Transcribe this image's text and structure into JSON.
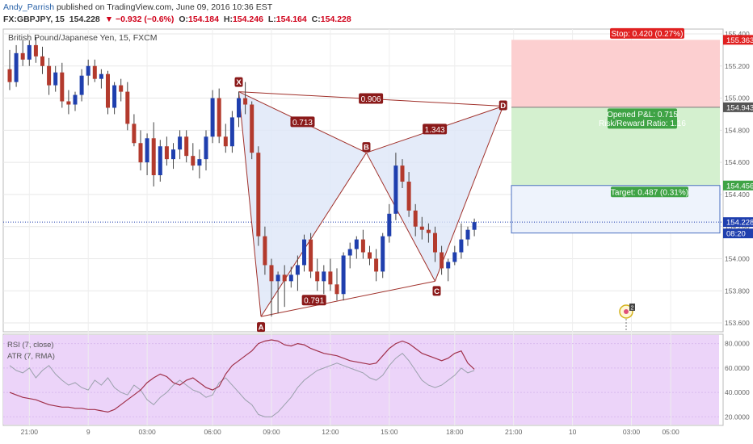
{
  "header": {
    "author": "Andy_Parrish",
    "published": "published on TradingView.com, June 09, 2016 10:36 EST",
    "symbol_line": "FX:GBPJPY, 15",
    "last_price": "154.228",
    "change": "▼ −0.932 (−0.6%)",
    "o_label": "O:",
    "o": "154.184",
    "h_label": "H:",
    "h": "154.246",
    "l_label": "L:",
    "l": "154.164",
    "c_label": "C:",
    "c": "154.228"
  },
  "chart_title": "British Pound/Japanese Yen, 15, FXCM",
  "colors": {
    "up": "#1f3fae",
    "down": "#b33a2d",
    "pattern_fill": "#dde6f7",
    "pattern_line": "#a0302a",
    "stop_zone": "#fccfd0",
    "target_zone": "#d4f0cf",
    "rsi_bg": "#ecd4f9",
    "rsi_line": "#a0304a",
    "atr_line": "#9aa0ac",
    "label_red": "#8b1a1a",
    "label_green": "#3fa345",
    "price_tag": "#1f3fae"
  },
  "chart_data": {
    "type": "candlestick",
    "symbol": "GBPJPY",
    "interval": "15",
    "ylim": [
      153.55,
      155.42
    ],
    "y_ticks": [
      "155.400",
      "155.200",
      "155.000",
      "154.800",
      "154.600",
      "154.400",
      "154.200",
      "154.000",
      "153.800",
      "153.600"
    ],
    "x_ticks": [
      {
        "label": "21:00",
        "i": 3
      },
      {
        "label": "9",
        "i": 12
      },
      {
        "label": "03:00",
        "i": 21
      },
      {
        "label": "06:00",
        "i": 31
      },
      {
        "label": "09:00",
        "i": 40
      },
      {
        "label": "12:00",
        "i": 49
      },
      {
        "label": "15:00",
        "i": 58
      },
      {
        "label": "18:00",
        "i": 68
      },
      {
        "label": "21:00",
        "i": 77
      },
      {
        "label": "10",
        "i": 86
      },
      {
        "label": "03:00",
        "i": 95
      },
      {
        "label": "05:00",
        "i": 101
      }
    ],
    "candles": [
      [
        155.18,
        155.3,
        155.05,
        155.1
      ],
      [
        155.1,
        155.33,
        155.07,
        155.28
      ],
      [
        155.28,
        155.36,
        155.2,
        155.24
      ],
      [
        155.24,
        155.36,
        155.2,
        155.33
      ],
      [
        155.33,
        155.38,
        155.22,
        155.26
      ],
      [
        155.26,
        155.32,
        155.15,
        155.2
      ],
      [
        155.2,
        155.25,
        155.02,
        155.08
      ],
      [
        155.08,
        155.2,
        155.04,
        155.16
      ],
      [
        155.16,
        155.22,
        154.94,
        154.98
      ],
      [
        154.98,
        155.05,
        154.9,
        154.96
      ],
      [
        154.96,
        155.04,
        154.92,
        155.02
      ],
      [
        155.02,
        155.18,
        154.98,
        155.14
      ],
      [
        155.14,
        155.24,
        155.08,
        155.2
      ],
      [
        155.2,
        155.24,
        155.1,
        155.12
      ],
      [
        155.12,
        155.18,
        155.06,
        155.15
      ],
      [
        155.15,
        155.17,
        154.9,
        154.94
      ],
      [
        154.94,
        155.1,
        154.9,
        155.08
      ],
      [
        155.08,
        155.12,
        154.98,
        155.04
      ],
      [
        155.04,
        155.1,
        154.8,
        154.84
      ],
      [
        154.84,
        154.9,
        154.7,
        154.72
      ],
      [
        154.72,
        154.8,
        154.55,
        154.6
      ],
      [
        154.6,
        154.78,
        154.52,
        154.75
      ],
      [
        154.75,
        154.85,
        154.45,
        154.52
      ],
      [
        154.52,
        154.74,
        154.48,
        154.7
      ],
      [
        154.7,
        154.76,
        154.58,
        154.62
      ],
      [
        154.62,
        154.72,
        154.56,
        154.68
      ],
      [
        154.68,
        154.8,
        154.62,
        154.76
      ],
      [
        154.76,
        154.8,
        154.6,
        154.64
      ],
      [
        154.64,
        154.72,
        154.55,
        154.58
      ],
      [
        154.58,
        154.68,
        154.5,
        154.62
      ],
      [
        154.62,
        154.8,
        154.55,
        154.76
      ],
      [
        154.76,
        155.05,
        154.72,
        155.0
      ],
      [
        155.0,
        155.06,
        154.72,
        154.76
      ],
      [
        154.76,
        154.84,
        154.66,
        154.7
      ],
      [
        154.7,
        154.92,
        154.66,
        154.88
      ],
      [
        154.88,
        155.04,
        154.82,
        155.0
      ],
      [
        155.0,
        155.1,
        154.9,
        154.96
      ],
      [
        154.96,
        154.98,
        154.62,
        154.66
      ],
      [
        154.66,
        154.7,
        154.08,
        154.14
      ],
      [
        154.14,
        154.2,
        153.9,
        153.96
      ],
      [
        153.96,
        154.0,
        153.64,
        153.86
      ],
      [
        153.86,
        153.92,
        153.66,
        153.9
      ],
      [
        153.9,
        153.96,
        153.7,
        153.86
      ],
      [
        153.86,
        153.95,
        153.82,
        153.9
      ],
      [
        153.9,
        154.02,
        153.8,
        153.96
      ],
      [
        153.96,
        154.15,
        153.92,
        154.12
      ],
      [
        154.12,
        154.16,
        153.88,
        153.92
      ],
      [
        153.92,
        154.0,
        153.8,
        153.86
      ],
      [
        153.86,
        153.96,
        153.78,
        153.92
      ],
      [
        153.92,
        154.0,
        153.8,
        153.84
      ],
      [
        153.84,
        153.94,
        153.74,
        153.78
      ],
      [
        153.78,
        154.04,
        153.74,
        154.02
      ],
      [
        154.02,
        154.1,
        153.94,
        154.06
      ],
      [
        154.06,
        154.14,
        154.0,
        154.12
      ],
      [
        154.12,
        154.18,
        154.0,
        154.04
      ],
      [
        154.04,
        154.08,
        153.96,
        154.0
      ],
      [
        154.0,
        154.06,
        153.86,
        153.92
      ],
      [
        153.92,
        154.16,
        153.88,
        154.14
      ],
      [
        154.14,
        154.34,
        154.1,
        154.28
      ],
      [
        154.28,
        154.66,
        154.24,
        154.58
      ],
      [
        154.58,
        154.62,
        154.44,
        154.48
      ],
      [
        154.48,
        154.54,
        154.26,
        154.3
      ],
      [
        154.3,
        154.34,
        154.14,
        154.2
      ],
      [
        154.2,
        154.26,
        154.12,
        154.18
      ],
      [
        154.18,
        154.22,
        154.1,
        154.16
      ],
      [
        154.16,
        154.2,
        153.98,
        154.04
      ],
      [
        154.04,
        154.08,
        153.9,
        153.94
      ],
      [
        153.94,
        154.0,
        153.86,
        153.98
      ],
      [
        153.98,
        154.08,
        153.96,
        154.04
      ],
      [
        154.04,
        154.22,
        154.0,
        154.12
      ],
      [
        154.12,
        154.2,
        154.08,
        154.18
      ],
      [
        154.18,
        154.25,
        154.14,
        154.228
      ]
    ],
    "pattern": {
      "name": "Bearish Bat",
      "points": [
        {
          "label": "X",
          "i": 35,
          "price": 155.04
        },
        {
          "label": "A",
          "i": 38.4,
          "price": 153.64
        },
        {
          "label": "B",
          "i": 54.5,
          "price": 154.66
        },
        {
          "label": "C",
          "i": 65,
          "price": 153.86
        },
        {
          "label": "D",
          "i": 75.4,
          "price": 154.95
        }
      ],
      "ratios": [
        {
          "text": "0.713",
          "from": "X",
          "to": "B"
        },
        {
          "text": "0.906",
          "from": "X",
          "to": "D"
        },
        {
          "text": "1.343",
          "from": "B",
          "to": "D"
        },
        {
          "text": "0.791",
          "from": "A",
          "to": "C"
        }
      ]
    },
    "position": {
      "entry": 154.943,
      "stop": 155.363,
      "target": 154.456,
      "stop_label": "Stop: 0.420 (0.27%)",
      "pnl_label": "Opened P&L: 0.715",
      "rr_label": "Risk/Reward Ratio: 1.16",
      "target_label": "Target: 0.487 (0.31%)",
      "stop_tag": "155.363",
      "entry_tag": "154.943",
      "target_tag": "154.456"
    },
    "last_price_tag": "154.228",
    "countdown": "08:20",
    "rsi": {
      "label": "RSI (7, close)",
      "y_ticks": [
        "80.0000",
        "60.0000",
        "40.0000",
        "20.0000"
      ],
      "ylim": [
        15,
        85
      ],
      "values": [
        40,
        38,
        36,
        35,
        34,
        32,
        30,
        29,
        28,
        28,
        27,
        27,
        26,
        26,
        25,
        24,
        26,
        30,
        34,
        38,
        42,
        48,
        52,
        55,
        53,
        48,
        46,
        50,
        52,
        48,
        44,
        42,
        45,
        55,
        62,
        66,
        70,
        74,
        80,
        82,
        83,
        82,
        79,
        78,
        80,
        79,
        76,
        74,
        72,
        71,
        70,
        68,
        66,
        65,
        64,
        63,
        64,
        70,
        76,
        80,
        82,
        80,
        76,
        72,
        70,
        68,
        66,
        68,
        72,
        74,
        64,
        59
      ]
    },
    "atr": {
      "label": "ATR (7, RMA)",
      "values": [
        62,
        58,
        56,
        60,
        52,
        58,
        62,
        55,
        50,
        46,
        48,
        44,
        42,
        50,
        46,
        52,
        44,
        40,
        38,
        46,
        42,
        34,
        30,
        36,
        40,
        46,
        50,
        46,
        42,
        40,
        36,
        38,
        48,
        52,
        46,
        40,
        34,
        30,
        22,
        20,
        20,
        24,
        30,
        36,
        44,
        50,
        54,
        58,
        60,
        62,
        64,
        62,
        60,
        58,
        56,
        52,
        50,
        54,
        62,
        68,
        72,
        66,
        58,
        50,
        46,
        44,
        46,
        50,
        54,
        60,
        56,
        58
      ]
    }
  },
  "marker_flag": "2"
}
